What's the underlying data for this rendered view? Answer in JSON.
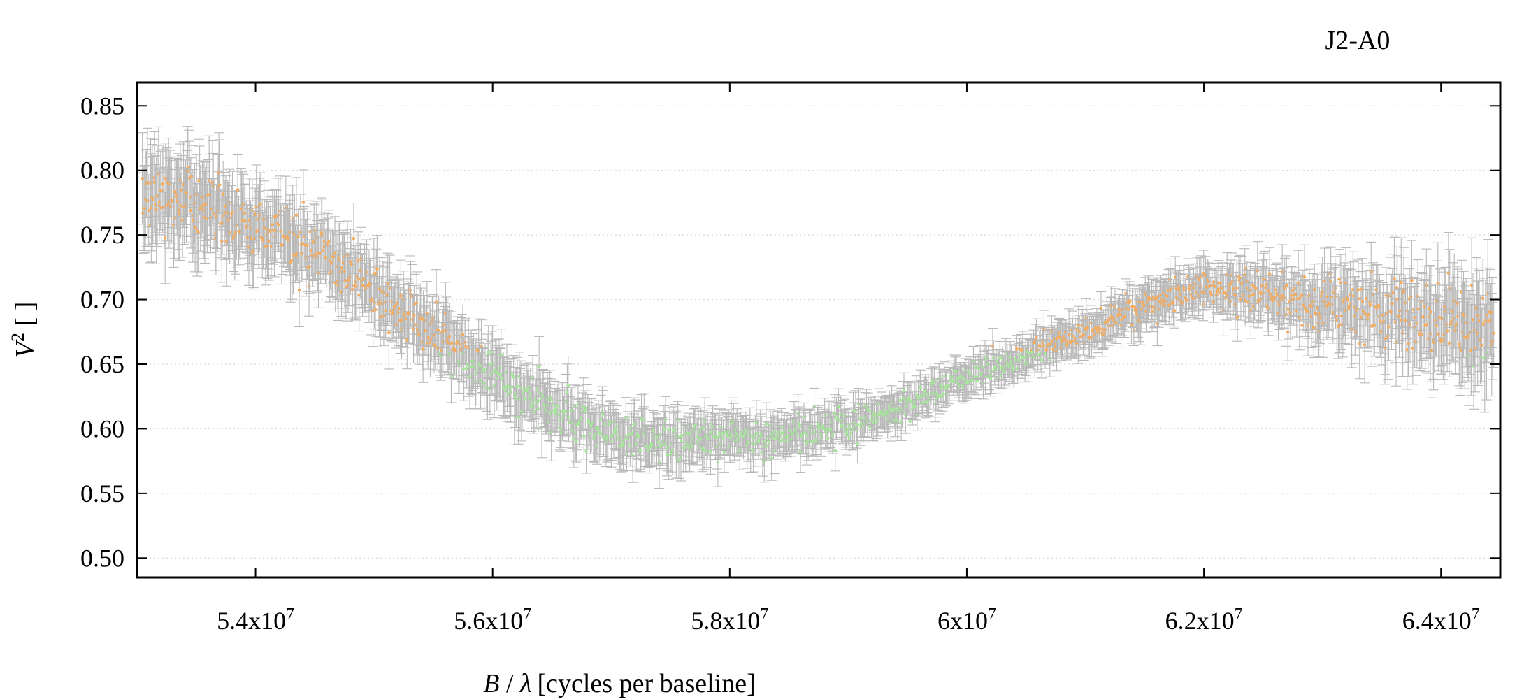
{
  "chart_data": {
    "type": "scatter",
    "title": "J2-A0",
    "xlabel": {
      "symbol": "B",
      "sep": " / ",
      "greek": "λ",
      "unit": "[cycles per baseline]"
    },
    "ylabel": {
      "symbol": "V",
      "superscript": "2",
      "unit": " [ ]"
    },
    "xlim": [
      53000000,
      64500000
    ],
    "ylim": [
      0.485,
      0.868
    ],
    "x_ticks": [
      {
        "value": 54000000,
        "mantissa": "5.4x10",
        "exp": "7"
      },
      {
        "value": 56000000,
        "mantissa": "5.6x10",
        "exp": "7"
      },
      {
        "value": 58000000,
        "mantissa": "5.8x10",
        "exp": "7"
      },
      {
        "value": 60000000,
        "mantissa": "6x10",
        "exp": "7"
      },
      {
        "value": 62000000,
        "mantissa": "6.2x10",
        "exp": "7"
      },
      {
        "value": 64000000,
        "mantissa": "6.4x10",
        "exp": "7"
      }
    ],
    "y_ticks": [
      {
        "value": 0.5,
        "label": "0.50"
      },
      {
        "value": 0.55,
        "label": "0.55"
      },
      {
        "value": 0.6,
        "label": "0.60"
      },
      {
        "value": 0.65,
        "label": "0.65"
      },
      {
        "value": 0.7,
        "label": "0.70"
      },
      {
        "value": 0.75,
        "label": "0.75"
      },
      {
        "value": 0.8,
        "label": "0.80"
      },
      {
        "value": 0.85,
        "label": "0.85"
      }
    ],
    "grid": {
      "y": true,
      "x": false,
      "style": "dotted"
    },
    "colors": {
      "errorbar": "#b8b8b8",
      "high": "#f5ad60",
      "low": "#a5e69a",
      "axis": "#000000",
      "grid": "#d8d8d8"
    },
    "model": {
      "period": 9950000,
      "peak_x": 53050000,
      "amplitude": [
        [
          53000000,
          0.105
        ],
        [
          54000000,
          0.105
        ],
        [
          55000000,
          0.102
        ],
        [
          56000000,
          0.092
        ],
        [
          57000000,
          0.085
        ],
        [
          58000000,
          0.073
        ],
        [
          59000000,
          0.068
        ],
        [
          60000000,
          0.065
        ],
        [
          61000000,
          0.066
        ],
        [
          62000000,
          0.058
        ],
        [
          63000000,
          0.052
        ],
        [
          64000000,
          0.048
        ],
        [
          64500000,
          0.05
        ]
      ],
      "center": [
        [
          53000000,
          0.675
        ],
        [
          54000000,
          0.672
        ],
        [
          55000000,
          0.673
        ],
        [
          56000000,
          0.668
        ],
        [
          57000000,
          0.663
        ],
        [
          58000000,
          0.668
        ],
        [
          59000000,
          0.658
        ],
        [
          60000000,
          0.66
        ],
        [
          61000000,
          0.655
        ],
        [
          62000000,
          0.662
        ],
        [
          63000000,
          0.642
        ],
        [
          64000000,
          0.645
        ],
        [
          64500000,
          0.645
        ]
      ],
      "errorbar_halfwidth": [
        [
          53000000,
          0.035
        ],
        [
          54000000,
          0.026
        ],
        [
          56000000,
          0.02
        ],
        [
          58000000,
          0.015
        ],
        [
          60000000,
          0.011
        ],
        [
          62000000,
          0.015
        ],
        [
          63000000,
          0.022
        ],
        [
          64500000,
          0.035
        ]
      ],
      "points": 1600
    }
  }
}
